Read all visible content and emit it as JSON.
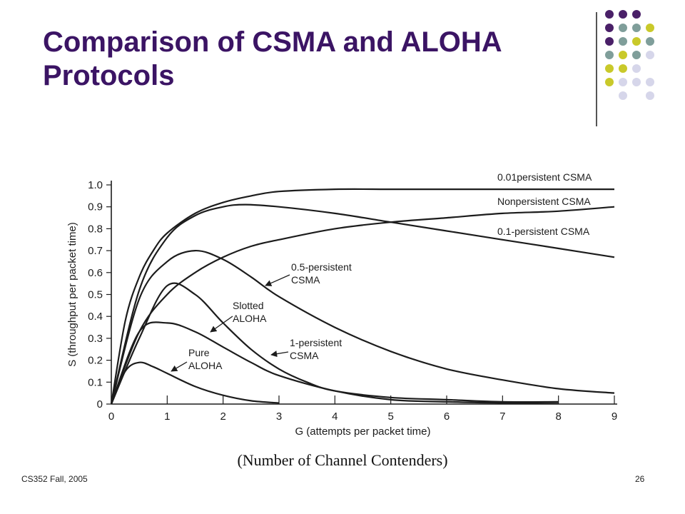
{
  "slide": {
    "title": "Comparison of CSMA and ALOHA Protocols",
    "caption": "(Number of Channel Contenders)",
    "footer_left": "CS352   Fall, 2005",
    "page_number": "26"
  },
  "colors": {
    "title": "#3b1464",
    "dot_purple": "#4a2068",
    "dot_teal": "#7f9e9a",
    "dot_yellow": "#c9c92a",
    "dot_lavender": "#d6d6ea",
    "curve": "#1c1c1c"
  },
  "decoration_dots": [
    [
      "purple",
      "purple",
      "purple",
      ""
    ],
    [
      "purple",
      "teal",
      "teal",
      "yellow"
    ],
    [
      "purple",
      "teal",
      "yellow",
      "teal"
    ],
    [
      "teal",
      "yellow",
      "teal",
      "lavender"
    ],
    [
      "yellow",
      "yellow",
      "lavender",
      ""
    ],
    [
      "yellow",
      "lavender",
      "lavender",
      "lavender"
    ],
    [
      "",
      "lavender",
      "",
      "lavender"
    ]
  ],
  "chart_data": {
    "type": "line",
    "xlabel": "G (attempts per packet time)",
    "ylabel": "S (throughput per packet time)",
    "xlim": [
      0,
      9
    ],
    "ylim": [
      0,
      1.0
    ],
    "xticks": [
      "0",
      "1",
      "2",
      "3",
      "4",
      "5",
      "6",
      "7",
      "8",
      "9"
    ],
    "yticks": [
      "0",
      "0.1",
      "0.2",
      "0.3",
      "0.4",
      "0.5",
      "0.6",
      "0.7",
      "0.8",
      "0.9",
      "1.0"
    ],
    "grid": false,
    "series": [
      {
        "name": "0.01persistent CSMA",
        "x": [
          0,
          0.25,
          0.5,
          0.75,
          1,
          1.5,
          2,
          2.5,
          3,
          4,
          5,
          6,
          7,
          8,
          9
        ],
        "y": [
          0,
          0.38,
          0.58,
          0.7,
          0.78,
          0.87,
          0.92,
          0.95,
          0.97,
          0.98,
          0.98,
          0.98,
          0.98,
          0.98,
          0.98
        ]
      },
      {
        "name": "Nonpersistent CSMA",
        "x": [
          0,
          0.5,
          1,
          1.5,
          2,
          2.5,
          3,
          4,
          5,
          6,
          7,
          8,
          9
        ],
        "y": [
          0,
          0.33,
          0.5,
          0.6,
          0.67,
          0.72,
          0.75,
          0.8,
          0.83,
          0.85,
          0.87,
          0.88,
          0.9
        ]
      },
      {
        "name": "0.1-persistent CSMA",
        "x": [
          0,
          0.5,
          1,
          1.5,
          2,
          2.4,
          3,
          4,
          5,
          6,
          7,
          8,
          9
        ],
        "y": [
          0,
          0.52,
          0.76,
          0.86,
          0.9,
          0.91,
          0.9,
          0.87,
          0.83,
          0.79,
          0.75,
          0.71,
          0.67
        ]
      },
      {
        "name": "0.5-persistent CSMA",
        "x": [
          0,
          0.5,
          1,
          1.5,
          2,
          2.5,
          3,
          4,
          5,
          6,
          7,
          8,
          9
        ],
        "y": [
          0,
          0.48,
          0.65,
          0.7,
          0.66,
          0.58,
          0.49,
          0.35,
          0.24,
          0.16,
          0.11,
          0.07,
          0.05
        ]
      },
      {
        "name": "Slotted ALOHA",
        "x": [
          0,
          0.5,
          1,
          1.5,
          2,
          2.5,
          3,
          3.5,
          4,
          5,
          6,
          7,
          8
        ],
        "y": [
          0,
          0.3,
          0.54,
          0.5,
          0.37,
          0.25,
          0.16,
          0.1,
          0.06,
          0.03,
          0.02,
          0.01,
          0.01
        ]
      },
      {
        "name": "1-persistent CSMA",
        "x": [
          0,
          0.5,
          1,
          1.5,
          2,
          2.5,
          3,
          4,
          5,
          6,
          7,
          8
        ],
        "y": [
          0,
          0.33,
          0.37,
          0.33,
          0.26,
          0.19,
          0.13,
          0.06,
          0.02,
          0.01,
          0.005,
          0.002
        ]
      },
      {
        "name": "Pure ALOHA",
        "x": [
          0,
          0.25,
          0.5,
          0.75,
          1,
          1.5,
          2,
          2.5,
          3
        ],
        "y": [
          0,
          0.15,
          0.19,
          0.17,
          0.14,
          0.08,
          0.04,
          0.015,
          0.005
        ]
      }
    ],
    "annotations": [
      {
        "text": "0.01persistent CSMA"
      },
      {
        "text": "Nonpersistent CSMA"
      },
      {
        "text": "0.1-persistent CSMA"
      },
      {
        "text": "0.5-persistent"
      },
      {
        "text": "CSMA"
      },
      {
        "text": "Slotted"
      },
      {
        "text": "ALOHA"
      },
      {
        "text": "1-persistent"
      },
      {
        "text": "CSMA"
      },
      {
        "text": "Pure"
      },
      {
        "text": "ALOHA"
      }
    ]
  }
}
